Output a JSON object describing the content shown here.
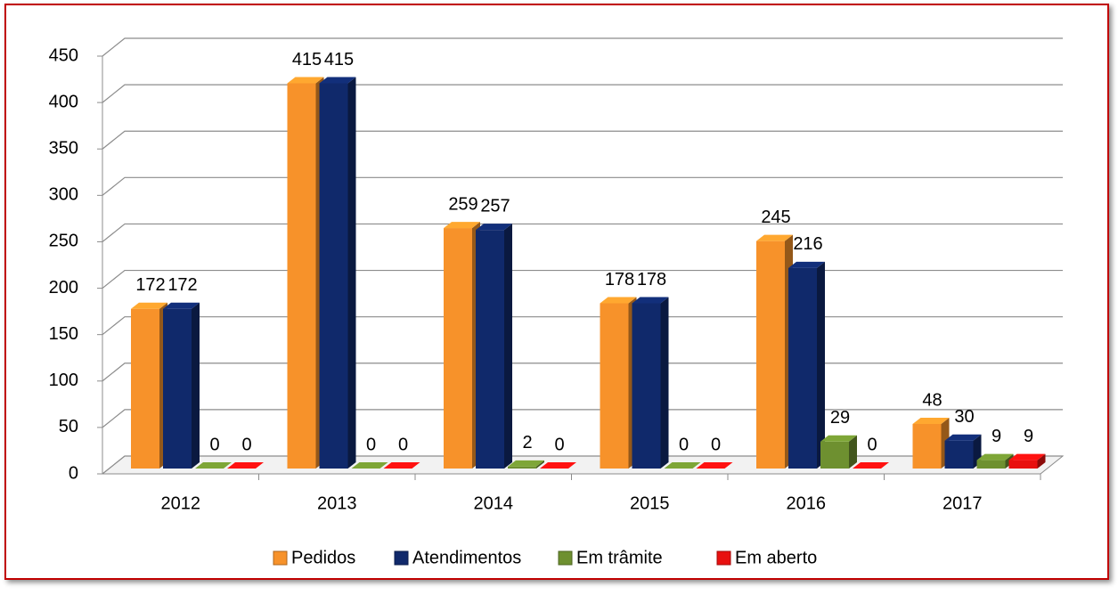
{
  "chart_data": {
    "type": "bar3d",
    "categories": [
      "2012",
      "2013",
      "2014",
      "2015",
      "2016",
      "2017"
    ],
    "series": [
      {
        "name": "Pedidos",
        "color": "#f7922a",
        "values": [
          172,
          415,
          259,
          178,
          245,
          48
        ]
      },
      {
        "name": "Atendimentos",
        "color": "#10296b",
        "values": [
          172,
          415,
          257,
          178,
          216,
          30
        ]
      },
      {
        "name": "Em trâmite",
        "color": "#6e9030",
        "values": [
          0,
          0,
          2,
          0,
          29,
          9
        ]
      },
      {
        "name": "Em aberto",
        "color": "#e8100f",
        "values": [
          0,
          0,
          0,
          0,
          0,
          9
        ]
      }
    ],
    "ylim": [
      0,
      450
    ],
    "yticks": [
      0,
      50,
      100,
      150,
      200,
      250,
      300,
      350,
      400,
      450
    ],
    "grid": true,
    "legend": "bottom"
  }
}
